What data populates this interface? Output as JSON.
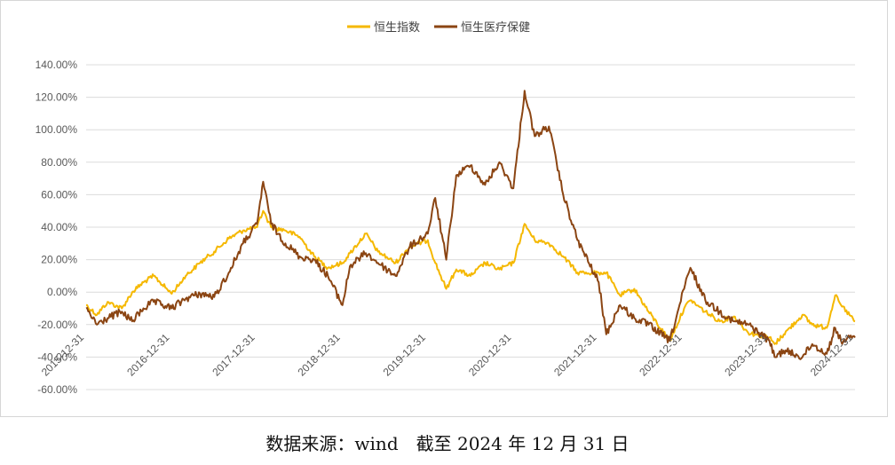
{
  "caption": "数据来源：wind　截至 2024 年 12 月 31 日",
  "chart_data": {
    "type": "line",
    "legend_position": "top-center",
    "grid": "horizontal",
    "ylim": [
      -60,
      140
    ],
    "y_ticks": [
      140,
      120,
      100,
      80,
      60,
      40,
      20,
      0,
      -20,
      -40,
      -60
    ],
    "y_tick_labels": [
      "140.00%",
      "120.00%",
      "100.00%",
      "80.00%",
      "60.00%",
      "40.00%",
      "20.00%",
      "0.00%",
      "-20.00%",
      "-40.00%",
      "-60.00%"
    ],
    "xlim": [
      "2015-12-31",
      "2024-12-31"
    ],
    "x_tick_labels": [
      "2015-12-31",
      "2016-12-31",
      "2017-12-31",
      "2018-12-31",
      "2019-12-31",
      "2020-12-31",
      "2021-12-31",
      "2022-12-31",
      "2023-12-31",
      "2024-12-31"
    ],
    "series": [
      {
        "name": "恒生指数",
        "color": "#F5B800",
        "x": [
          "2015-12-31",
          "2016-02-15",
          "2016-04-01",
          "2016-06-01",
          "2016-07-15",
          "2016-09-01",
          "2016-10-15",
          "2016-12-31",
          "2017-03-01",
          "2017-05-01",
          "2017-07-01",
          "2017-09-01",
          "2017-11-01",
          "2017-12-31",
          "2018-01-26",
          "2018-03-01",
          "2018-05-01",
          "2018-07-01",
          "2018-09-01",
          "2018-10-30",
          "2018-12-31",
          "2019-02-01",
          "2019-04-10",
          "2019-06-01",
          "2019-08-15",
          "2019-10-15",
          "2019-12-31",
          "2020-02-01",
          "2020-03-19",
          "2020-05-01",
          "2020-07-01",
          "2020-09-01",
          "2020-11-01",
          "2020-12-31",
          "2021-02-17",
          "2021-04-01",
          "2021-06-01",
          "2021-08-01",
          "2021-10-01",
          "2021-12-31",
          "2022-02-01",
          "2022-04-01",
          "2022-06-01",
          "2022-08-01",
          "2022-10-31",
          "2022-12-31",
          "2023-01-27",
          "2023-04-01",
          "2023-06-01",
          "2023-08-01",
          "2023-10-01",
          "2023-12-31",
          "2024-01-22",
          "2024-03-01",
          "2024-05-20",
          "2024-07-01",
          "2024-09-01",
          "2024-10-07",
          "2024-11-01",
          "2024-12-31"
        ],
        "values": [
          -8,
          -14,
          -6,
          -10,
          0,
          6,
          10,
          -1,
          10,
          18,
          25,
          33,
          38,
          40,
          50,
          40,
          38,
          34,
          22,
          15,
          18,
          24,
          36,
          25,
          18,
          28,
          32,
          18,
          2,
          14,
          10,
          18,
          14,
          18,
          42,
          32,
          30,
          22,
          12,
          12,
          12,
          -2,
          2,
          -12,
          -30,
          -10,
          -5,
          -12,
          -18,
          -15,
          -25,
          -28,
          -32,
          -26,
          -14,
          -20,
          -22,
          -2,
          -8,
          -18
        ]
      },
      {
        "name": "恒生医疗保健",
        "color": "#8B4513",
        "x": [
          "2015-12-31",
          "2016-02-15",
          "2016-04-01",
          "2016-06-01",
          "2016-07-15",
          "2016-09-01",
          "2016-10-15",
          "2016-12-31",
          "2017-03-01",
          "2017-05-01",
          "2017-07-01",
          "2017-09-01",
          "2017-11-01",
          "2017-12-31",
          "2018-01-26",
          "2018-03-01",
          "2018-05-01",
          "2018-07-01",
          "2018-09-01",
          "2018-10-30",
          "2018-12-31",
          "2019-02-01",
          "2019-04-10",
          "2019-06-01",
          "2019-08-15",
          "2019-10-15",
          "2019-12-31",
          "2020-02-01",
          "2020-03-19",
          "2020-05-01",
          "2020-07-01",
          "2020-09-01",
          "2020-11-01",
          "2020-12-31",
          "2021-02-17",
          "2021-04-01",
          "2021-06-01",
          "2021-08-01",
          "2021-10-01",
          "2021-12-31",
          "2022-02-01",
          "2022-04-01",
          "2022-06-01",
          "2022-08-01",
          "2022-10-31",
          "2022-12-31",
          "2023-01-27",
          "2023-04-01",
          "2023-06-01",
          "2023-08-01",
          "2023-10-01",
          "2023-12-31",
          "2024-01-22",
          "2024-03-01",
          "2024-05-20",
          "2024-07-01",
          "2024-09-01",
          "2024-10-07",
          "2024-11-01",
          "2024-12-31"
        ],
        "values": [
          -10,
          -20,
          -16,
          -12,
          -18,
          -10,
          -6,
          -10,
          -4,
          -1,
          -3,
          12,
          30,
          42,
          68,
          42,
          30,
          22,
          20,
          10,
          -8,
          16,
          24,
          18,
          10,
          28,
          36,
          58,
          20,
          72,
          78,
          66,
          80,
          64,
          124,
          96,
          102,
          60,
          32,
          6,
          -26,
          -8,
          -16,
          -20,
          -30,
          2,
          15,
          -5,
          -12,
          -18,
          -20,
          -30,
          -40,
          -36,
          -40,
          -32,
          -38,
          -22,
          -30,
          -28
        ]
      }
    ]
  }
}
